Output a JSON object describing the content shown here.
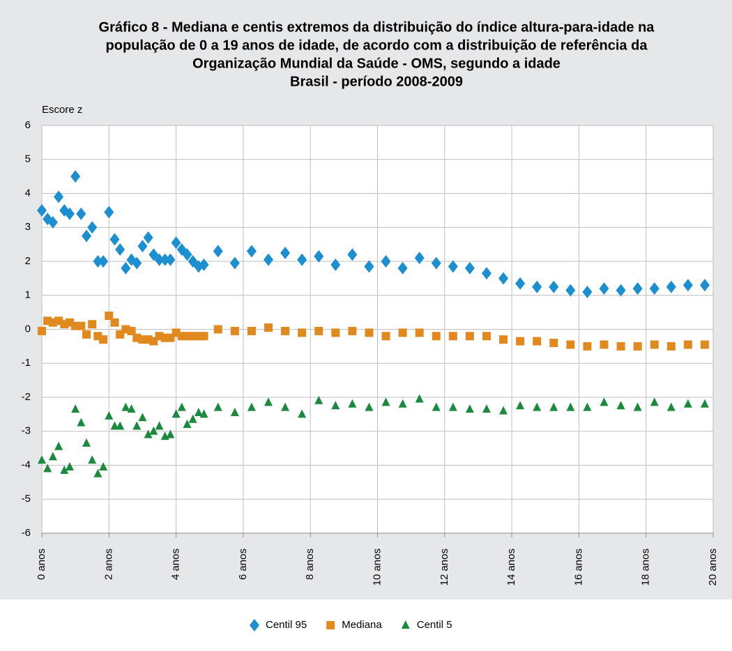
{
  "chart_data": {
    "type": "scatter",
    "title": [
      "Gráfico 8 - Mediana e centis extremos da distribuição do índice altura-para-idade na",
      "população de 0 a 19 anos de idade, de acordo com a distribuição de referência da",
      "Organização Mundial da Saúde - OMS, segundo a idade",
      "Brasil - período 2008-2009"
    ],
    "y_label": "Escore z",
    "x": [
      0,
      0.17,
      0.33,
      0.5,
      0.67,
      0.83,
      1,
      1.17,
      1.33,
      1.5,
      1.67,
      1.83,
      2,
      2.17,
      2.33,
      2.5,
      2.67,
      2.83,
      3,
      3.17,
      3.33,
      3.5,
      3.67,
      3.83,
      4,
      4.17,
      4.33,
      4.5,
      4.67,
      4.83,
      5.25,
      5.75,
      6.25,
      6.75,
      7.25,
      7.75,
      8.25,
      8.75,
      9.25,
      9.75,
      10.25,
      10.75,
      11.25,
      11.75,
      12.25,
      12.75,
      13.25,
      13.75,
      14.25,
      14.75,
      15.25,
      15.75,
      16.25,
      16.75,
      17.25,
      17.75,
      18.25,
      18.75,
      19.25,
      19.75
    ],
    "series": [
      {
        "name": "Centil 95",
        "color": "#1b8fd0",
        "marker": "diamond",
        "values": [
          3.5,
          3.25,
          3.15,
          3.9,
          3.5,
          3.4,
          4.5,
          3.4,
          2.75,
          3.0,
          2.0,
          2.0,
          3.45,
          2.65,
          2.35,
          1.8,
          2.05,
          1.95,
          2.45,
          2.7,
          2.2,
          2.05,
          2.05,
          2.05,
          2.55,
          2.35,
          2.2,
          2.0,
          1.85,
          1.9,
          2.3,
          1.95,
          2.3,
          2.05,
          2.25,
          2.05,
          2.15,
          1.9,
          2.2,
          1.85,
          2.0,
          1.8,
          2.1,
          1.95,
          1.85,
          1.8,
          1.65,
          1.5,
          1.35,
          1.25,
          1.25,
          1.15,
          1.1,
          1.2,
          1.15,
          1.2,
          1.2,
          1.25,
          1.3,
          1.3
        ]
      },
      {
        "name": "Mediana",
        "color": "#e0891f",
        "marker": "square",
        "values": [
          -0.05,
          0.25,
          0.2,
          0.25,
          0.15,
          0.2,
          0.1,
          0.1,
          -0.15,
          0.15,
          -0.2,
          -0.3,
          0.4,
          0.2,
          -0.15,
          0.0,
          -0.05,
          -0.25,
          -0.3,
          -0.3,
          -0.35,
          -0.2,
          -0.25,
          -0.25,
          -0.1,
          -0.2,
          -0.2,
          -0.2,
          -0.2,
          -0.2,
          0.0,
          -0.05,
          -0.05,
          0.05,
          -0.05,
          -0.1,
          -0.05,
          -0.1,
          -0.05,
          -0.1,
          -0.2,
          -0.1,
          -0.1,
          -0.2,
          -0.2,
          -0.2,
          -0.2,
          -0.3,
          -0.35,
          -0.35,
          -0.4,
          -0.45,
          -0.5,
          -0.45,
          -0.5,
          -0.5,
          -0.45,
          -0.5,
          -0.45,
          -0.45
        ]
      },
      {
        "name": "Centil 5",
        "color": "#1b8a3e",
        "marker": "triangle",
        "values": [
          -3.85,
          -4.1,
          -3.75,
          -3.45,
          -4.15,
          -4.05,
          -2.35,
          -2.75,
          -3.35,
          -3.85,
          -4.25,
          -4.05,
          -2.55,
          -2.85,
          -2.85,
          -2.3,
          -2.35,
          -2.85,
          -2.6,
          -3.1,
          -3.0,
          -2.85,
          -3.15,
          -3.1,
          -2.5,
          -2.3,
          -2.8,
          -2.65,
          -2.45,
          -2.5,
          -2.3,
          -2.45,
          -2.3,
          -2.15,
          -2.3,
          -2.5,
          -2.1,
          -2.25,
          -2.2,
          -2.3,
          -2.15,
          -2.2,
          -2.05,
          -2.3,
          -2.3,
          -2.35,
          -2.35,
          -2.4,
          -2.25,
          -2.3,
          -2.3,
          -2.3,
          -2.3,
          -2.15,
          -2.25,
          -2.3,
          -2.15,
          -2.3,
          -2.2,
          -2.2
        ]
      }
    ],
    "xlim": [
      0,
      20
    ],
    "xticks": [
      {
        "value": 0,
        "label": "0 anos"
      },
      {
        "value": 2,
        "label": "2 anos"
      },
      {
        "value": 4,
        "label": "4 anos"
      },
      {
        "value": 6,
        "label": "6 anos"
      },
      {
        "value": 8,
        "label": "8 anos"
      },
      {
        "value": 10,
        "label": "10 anos"
      },
      {
        "value": 12,
        "label": "12 anos"
      },
      {
        "value": 14,
        "label": "14 anos"
      },
      {
        "value": 16,
        "label": "16 anos"
      },
      {
        "value": 18,
        "label": "18 anos"
      },
      {
        "value": 20,
        "label": "20 anos"
      }
    ],
    "ylim": [
      -6,
      6
    ],
    "yticks": [
      -6,
      -5,
      -4,
      -3,
      -2,
      -1,
      0,
      1,
      2,
      3,
      4,
      5,
      6
    ],
    "grid": true,
    "legend": "bottom"
  }
}
